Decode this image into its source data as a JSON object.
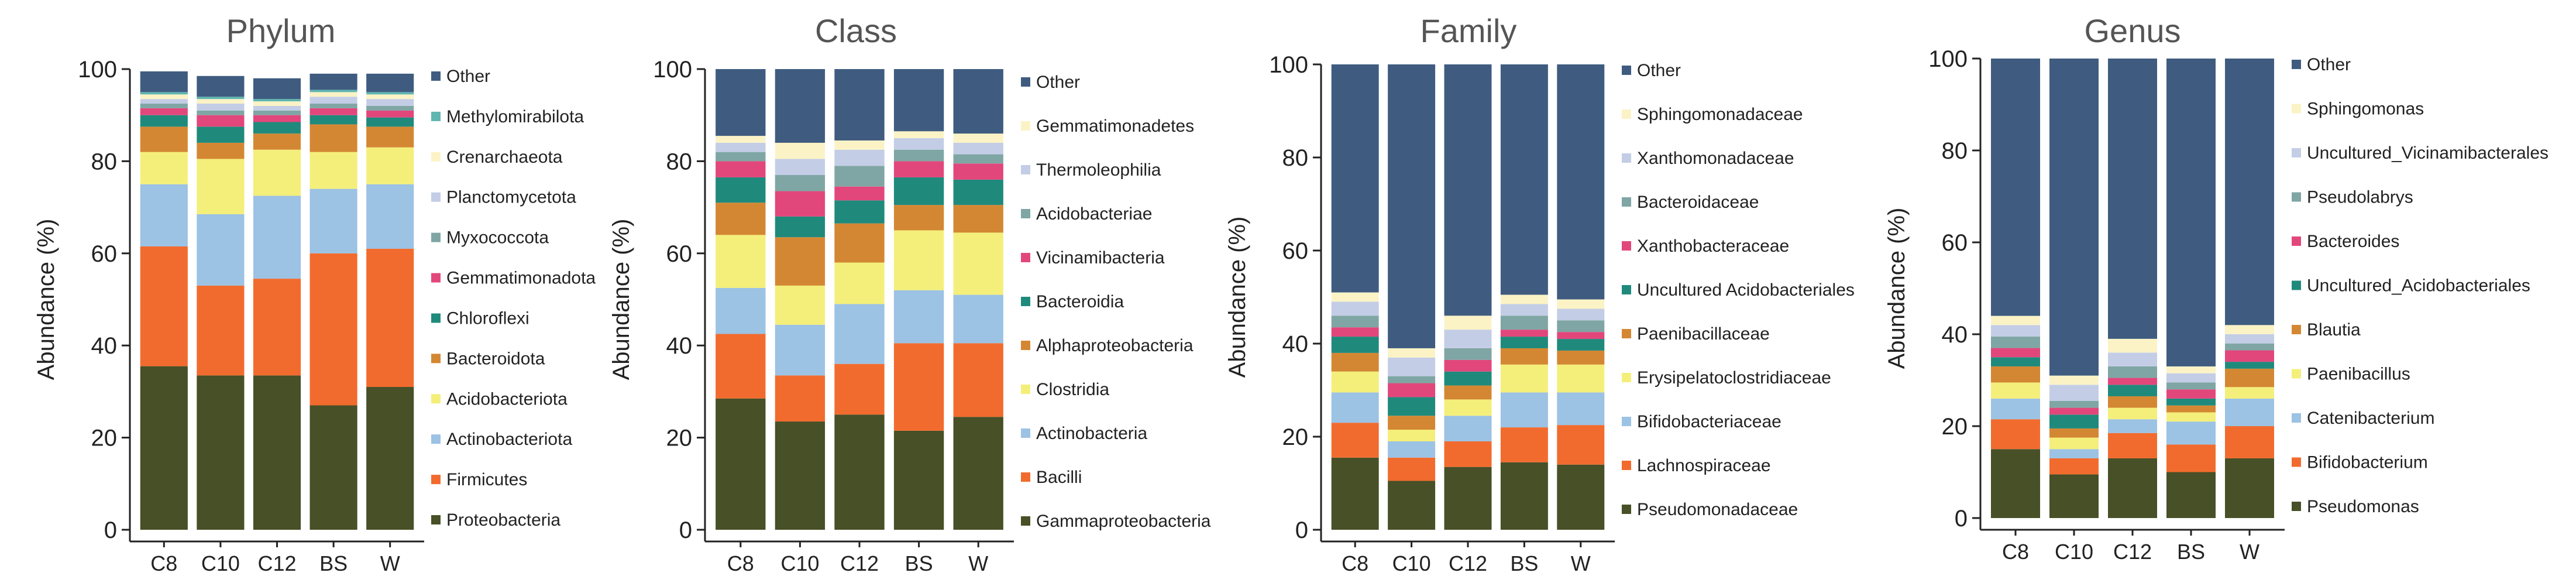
{
  "chart_data": [
    {
      "type": "bar",
      "stacked": true,
      "title": "Phylum",
      "ylabel": "Abundance (%)",
      "ylim": [
        0,
        100
      ],
      "yticks": [
        0,
        20,
        40,
        60,
        80,
        100
      ],
      "categories": [
        "C8",
        "C10",
        "C12",
        "BS",
        "W"
      ],
      "legend_placement": "right",
      "series": [
        {
          "name": "Proteobacteria",
          "color": "#475026",
          "values": [
            35.5,
            33.5,
            33.5,
            27.0,
            31.0
          ]
        },
        {
          "name": "Firmicutes",
          "color": "#f26b2e",
          "values": [
            26.0,
            19.5,
            21.0,
            33.0,
            30.0
          ]
        },
        {
          "name": "Actinobacteriota",
          "color": "#9cc2e4",
          "values": [
            13.5,
            15.5,
            18.0,
            14.0,
            14.0
          ]
        },
        {
          "name": "Acidobacteriota",
          "color": "#f4ef7a",
          "values": [
            7.0,
            12.0,
            10.0,
            8.0,
            8.0
          ]
        },
        {
          "name": "Bacteroidota",
          "color": "#d48733",
          "values": [
            5.5,
            3.5,
            3.5,
            6.0,
            4.5
          ]
        },
        {
          "name": "Chloroflexi",
          "color": "#1f8a7c",
          "values": [
            2.5,
            3.5,
            2.5,
            2.0,
            2.0
          ]
        },
        {
          "name": "Gemmatimonadota",
          "color": "#e2477c",
          "values": [
            1.5,
            2.5,
            1.5,
            1.5,
            1.5
          ]
        },
        {
          "name": "Myxococcota",
          "color": "#7fa6a4",
          "values": [
            1.0,
            1.0,
            1.0,
            1.0,
            1.0
          ]
        },
        {
          "name": "Planctomycetota",
          "color": "#c3cde6",
          "values": [
            1.0,
            1.5,
            1.0,
            1.5,
            1.5
          ]
        },
        {
          "name": "Crenarchaeota",
          "color": "#fbf3c6",
          "values": [
            1.0,
            1.0,
            1.0,
            1.0,
            1.0
          ]
        },
        {
          "name": "Methylomirabilota",
          "color": "#5fb5b0",
          "values": [
            0.5,
            0.5,
            0.5,
            0.5,
            0.5
          ]
        },
        {
          "name": "Other",
          "color": "#3f5c80",
          "values": [
            4.5,
            4.5,
            4.5,
            3.5,
            4.0
          ]
        }
      ]
    },
    {
      "type": "bar",
      "stacked": true,
      "title": "Class",
      "ylabel": "Abundance (%)",
      "ylim": [
        0,
        100
      ],
      "yticks": [
        0,
        20,
        40,
        60,
        80,
        100
      ],
      "categories": [
        "C8",
        "C10",
        "C12",
        "BS",
        "W"
      ],
      "legend_placement": "right",
      "series": [
        {
          "name": "Gammaproteobacteria",
          "color": "#475026",
          "values": [
            28.5,
            23.5,
            25.0,
            21.5,
            24.5
          ]
        },
        {
          "name": "Bacilli",
          "color": "#f26b2e",
          "values": [
            14.0,
            10.0,
            11.0,
            19.0,
            16.0
          ]
        },
        {
          "name": "Actinobacteria",
          "color": "#9cc2e4",
          "values": [
            10.0,
            11.0,
            13.0,
            11.5,
            10.5
          ]
        },
        {
          "name": "Clostridia",
          "color": "#f4ef7a",
          "values": [
            11.5,
            8.5,
            9.0,
            13.0,
            13.5
          ]
        },
        {
          "name": "Alphaproteobacteria",
          "color": "#d48733",
          "values": [
            7.0,
            10.5,
            8.5,
            5.5,
            6.0
          ]
        },
        {
          "name": "Bacteroidia",
          "color": "#1f8a7c",
          "values": [
            5.5,
            4.5,
            5.0,
            6.0,
            5.5
          ]
        },
        {
          "name": "Vicinamibacteria",
          "color": "#e2477c",
          "values": [
            3.5,
            5.5,
            3.0,
            3.5,
            3.5
          ]
        },
        {
          "name": "Acidobacteriae",
          "color": "#7fa6a4",
          "values": [
            2.0,
            3.5,
            4.5,
            2.5,
            2.0
          ]
        },
        {
          "name": "Thermoleophilia",
          "color": "#c3cde6",
          "values": [
            2.0,
            3.5,
            3.5,
            2.5,
            2.5
          ]
        },
        {
          "name": "Gemmatimonadetes",
          "color": "#fbf3c6",
          "values": [
            1.5,
            3.5,
            2.0,
            1.5,
            2.0
          ]
        },
        {
          "name": "Other",
          "color": "#3f5c80",
          "values": [
            14.5,
            16.0,
            15.5,
            13.5,
            14.0
          ]
        }
      ]
    },
    {
      "type": "bar",
      "stacked": true,
      "title": "Family",
      "ylabel": "Abundance (%)",
      "ylim": [
        0,
        100
      ],
      "yticks": [
        0,
        20,
        40,
        60,
        80,
        100
      ],
      "categories": [
        "C8",
        "C10",
        "C12",
        "BS",
        "W"
      ],
      "legend_placement": "right",
      "series": [
        {
          "name": "Pseudomonadaceae",
          "color": "#475026",
          "values": [
            15.5,
            10.5,
            13.5,
            14.5,
            14.0
          ]
        },
        {
          "name": "Lachnospiraceae",
          "color": "#f26b2e",
          "values": [
            7.5,
            5.0,
            5.5,
            7.5,
            8.5
          ]
        },
        {
          "name": "Bifidobacteriaceae",
          "color": "#9cc2e4",
          "values": [
            6.5,
            3.5,
            5.5,
            7.5,
            7.0
          ]
        },
        {
          "name": "Erysipelatoclostridiaceae",
          "color": "#f4ef7a",
          "values": [
            4.5,
            2.5,
            3.5,
            6.0,
            6.0
          ]
        },
        {
          "name": "Paenibacillaceae",
          "color": "#d48733",
          "values": [
            4.0,
            3.0,
            3.0,
            3.5,
            3.0
          ]
        },
        {
          "name": "Uncultured  Acidobacteriales",
          "color": "#1f8a7c",
          "values": [
            3.5,
            4.0,
            3.0,
            2.5,
            2.5
          ]
        },
        {
          "name": "Xanthobacteraceae",
          "color": "#e2477c",
          "values": [
            2.0,
            3.0,
            2.5,
            1.5,
            1.5
          ]
        },
        {
          "name": "Bacteroidaceae",
          "color": "#7fa6a4",
          "values": [
            2.5,
            1.5,
            2.5,
            3.0,
            2.5
          ]
        },
        {
          "name": "Xanthomonadaceae",
          "color": "#c3cde6",
          "values": [
            3.0,
            4.0,
            4.0,
            2.5,
            2.5
          ]
        },
        {
          "name": "Sphingomonadaceae",
          "color": "#fbf3c6",
          "values": [
            2.0,
            2.0,
            3.0,
            2.0,
            2.0
          ]
        },
        {
          "name": "Other",
          "color": "#3f5c80",
          "values": [
            49.0,
            61.0,
            54.0,
            49.5,
            50.5
          ]
        }
      ]
    },
    {
      "type": "bar",
      "stacked": true,
      "title": "Genus",
      "ylabel": "Abundance (%)",
      "ylim": [
        0,
        100
      ],
      "yticks": [
        0,
        20,
        40,
        60,
        80,
        100
      ],
      "categories": [
        "C8",
        "C10",
        "C12",
        "BS",
        "W"
      ],
      "legend_placement": "right",
      "series": [
        {
          "name": "Pseudomonas",
          "color": "#475026",
          "values": [
            15.0,
            9.5,
            13.0,
            10.0,
            13.0
          ]
        },
        {
          "name": "Bifidobacterium",
          "color": "#f26b2e",
          "values": [
            6.5,
            3.5,
            5.5,
            6.0,
            7.0
          ]
        },
        {
          "name": "Catenibacterium",
          "color": "#9cc2e4",
          "values": [
            4.5,
            2.0,
            3.0,
            5.0,
            6.0
          ]
        },
        {
          "name": "Paenibacillus",
          "color": "#f4ef7a",
          "values": [
            3.5,
            2.5,
            2.5,
            2.0,
            2.5
          ]
        },
        {
          "name": "Blautia",
          "color": "#d48733",
          "values": [
            3.5,
            2.0,
            2.5,
            1.5,
            4.0
          ]
        },
        {
          "name": "Uncultured_Acidobacteriales",
          "color": "#1f8a7c",
          "values": [
            2.0,
            3.0,
            2.5,
            1.5,
            1.5
          ]
        },
        {
          "name": "Bacteroides",
          "color": "#e2477c",
          "values": [
            2.0,
            1.5,
            1.5,
            2.0,
            2.5
          ]
        },
        {
          "name": "Pseudolabrys",
          "color": "#7fa6a4",
          "values": [
            2.5,
            1.5,
            2.5,
            1.5,
            1.5
          ]
        },
        {
          "name": "Uncultured_Vicinamibacterales",
          "color": "#c3cde6",
          "values": [
            2.5,
            3.5,
            3.0,
            2.0,
            2.0
          ]
        },
        {
          "name": "Sphingomonas",
          "color": "#fbf3c6",
          "values": [
            2.0,
            2.0,
            3.0,
            1.5,
            2.0
          ]
        },
        {
          "name": "Other",
          "color": "#3f5c80",
          "values": [
            56.0,
            69.0,
            61.0,
            67.0,
            58.0
          ]
        }
      ]
    }
  ]
}
